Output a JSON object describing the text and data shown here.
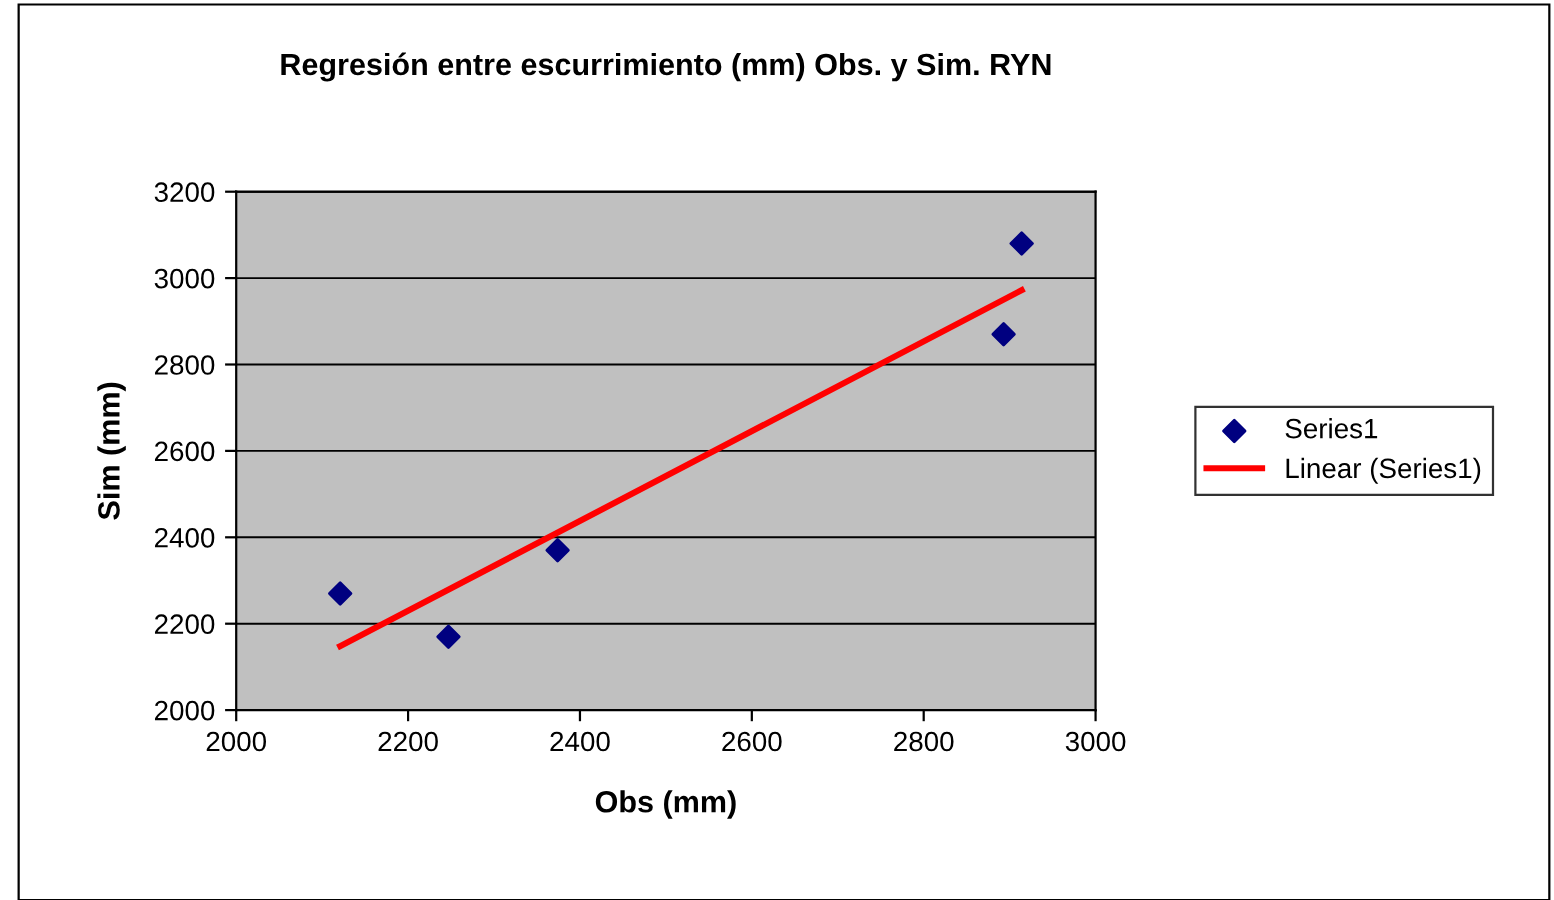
{
  "chart_data": {
    "type": "scatter",
    "title": "Regresión entre escurrimiento (mm) Obs. y Sim. RYN",
    "xlabel": "Obs (mm)",
    "ylabel": "Sim (mm)",
    "series": [
      {
        "name": "Series1",
        "color": "#000080",
        "marker": "diamond",
        "x": [
          2121,
          2247,
          2374,
          2893,
          2914
        ],
        "values": [
          2270,
          2170,
          2370,
          2870,
          3080
        ]
      },
      {
        "name": "Linear (Series1)",
        "type": "line",
        "color": "#ff0000",
        "marker": "none",
        "line_style": "solid",
        "x": [
          2121,
          2914
        ],
        "values": [
          2148,
          2972
        ]
      }
    ],
    "xlim": [
      2000,
      3000
    ],
    "xticks": [
      2000,
      2200,
      2400,
      2600,
      2800,
      3000
    ],
    "ylim": [
      2000,
      3200
    ],
    "yticks": [
      2000,
      2200,
      2400,
      2600,
      2800,
      3000,
      3200
    ],
    "grid": "y",
    "legend": "right"
  }
}
